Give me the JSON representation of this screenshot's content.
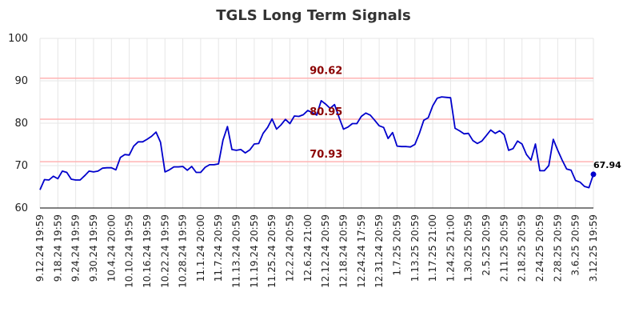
{
  "chart_data": {
    "type": "line",
    "title": "TGLS Long Term Signals",
    "xlabel": "",
    "ylabel": "",
    "ylim": [
      60,
      100
    ],
    "yticks": [
      "60",
      "70",
      "80",
      "90",
      "100"
    ],
    "grid": true,
    "x_tick_labels": [
      "9.12.24 19:59",
      "9.18.24 19:59",
      "9.24.24 19:59",
      "9.30.24 19:59",
      "10.4.24 20:00",
      "10.10.24 19:59",
      "10.16.24 19:59",
      "10.22.24 19:59",
      "10.28.24 19:59",
      "11.1.24 20:00",
      "11.7.24 20:59",
      "11.13.24 20:59",
      "11.19.24 20:59",
      "11.25.24 20:59",
      "12.2.24 20:59",
      "12.6.24 21:00",
      "12.12.24 20:59",
      "12.18.24 20:59",
      "12.24.24 17:59",
      "12.31.24 20:59",
      "1.7.25 20:59",
      "1.13.25 20:59",
      "1.17.25 21:00",
      "1.24.25 21:00",
      "1.30.25 20:59",
      "2.5.25 20:59",
      "2.11.25 20:59",
      "2.18.25 20:59",
      "2.24.25 20:59",
      "2.28.25 20:59",
      "3.6.25 20:59",
      "3.12.25 19:59"
    ],
    "horizontal_lines": [
      {
        "value": 90.62,
        "label": "90.62",
        "color": "#ffb3b3"
      },
      {
        "value": 80.95,
        "label": "80.95",
        "color": "#ffb3b3"
      },
      {
        "value": 70.93,
        "label": "70.93",
        "color": "#ffb3b3"
      }
    ],
    "series": [
      {
        "color": "#0000cc",
        "values": [
          64.3,
          66.7,
          66.6,
          67.5,
          66.9,
          68.7,
          68.4,
          66.8,
          66.6,
          66.6,
          67.6,
          68.7,
          68.5,
          68.7,
          69.4,
          69.5,
          69.5,
          69.0,
          71.9,
          72.6,
          72.5,
          74.6,
          75.6,
          75.6,
          76.2,
          76.9,
          77.9,
          75.5,
          68.5,
          69.0,
          69.7,
          69.7,
          69.8,
          68.9,
          69.8,
          68.4,
          68.4,
          69.6,
          70.2,
          70.2,
          70.4,
          76.0,
          79.2,
          73.8,
          73.6,
          73.8,
          73.0,
          73.7,
          75.1,
          75.2,
          77.6,
          79.0,
          81.0,
          78.6,
          79.6,
          80.9,
          79.9,
          81.7,
          81.6,
          82.0,
          83.0,
          82.5,
          81.9,
          85.3,
          84.5,
          83.5,
          84.4,
          81.4,
          78.6,
          79.1,
          79.9,
          79.9,
          81.6,
          82.4,
          81.9,
          80.7,
          79.4,
          79.0,
          76.4,
          77.8,
          74.6,
          74.5,
          74.5,
          74.4,
          75.0,
          77.6,
          80.7,
          81.3,
          84.1,
          85.9,
          86.2,
          86.1,
          86.0,
          78.8,
          78.2,
          77.5,
          77.6,
          75.9,
          75.2,
          75.8,
          77.1,
          78.4,
          77.6,
          78.2,
          77.3,
          73.6,
          74.0,
          75.8,
          75.1,
          72.6,
          71.3,
          75.1,
          68.8,
          68.8,
          70.0,
          76.2,
          73.6,
          71.3,
          69.2,
          68.9,
          66.5,
          66.1,
          65.1,
          64.8,
          67.94
        ]
      }
    ],
    "last_value_label": "67.94"
  }
}
